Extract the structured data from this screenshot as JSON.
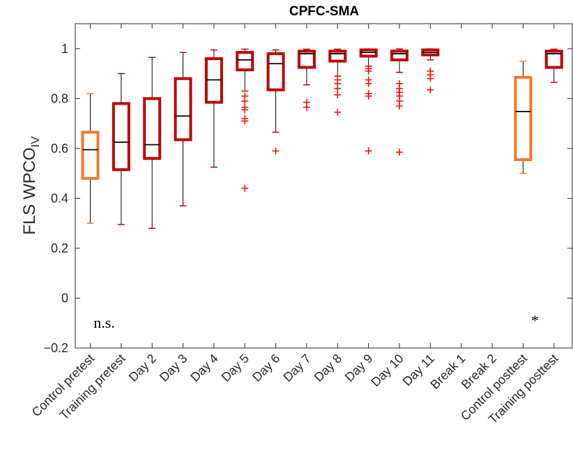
{
  "chart_data": {
    "type": "box",
    "title": "CPFC-SMA",
    "ylabel": "FLS WPCO",
    "ylabel_subscript": "IV",
    "xlabel": "",
    "ylim": [
      -0.2,
      1.1
    ],
    "yticks": [
      -0.2,
      0,
      0.2,
      0.4,
      0.6,
      0.8,
      1
    ],
    "ytick_labels": [
      "−0.2",
      "0",
      "0.2",
      "0.4",
      "0.6",
      "0.8",
      "1"
    ],
    "grid": false,
    "colors": {
      "control": "#f4772c",
      "training": "#c00000",
      "outlier": "#ff0000",
      "median": "#000000"
    },
    "categories": [
      "Control pretest",
      "Training pretest",
      "Day 2",
      "Day 3",
      "Day 4",
      "Day 5",
      "Day 6",
      "Day 7",
      "Day 8",
      "Day 9",
      "Day 10",
      "Day 11",
      "Break 1",
      "Break 2",
      "Control posttest",
      "Training posttest"
    ],
    "boxes": [
      {
        "category": "Control pretest",
        "group": "control",
        "whisker_low": 0.3,
        "q1": 0.48,
        "median": 0.595,
        "q3": 0.665,
        "whisker_high": 0.82,
        "outliers": []
      },
      {
        "category": "Training pretest",
        "group": "training",
        "whisker_low": 0.295,
        "q1": 0.515,
        "median": 0.625,
        "q3": 0.78,
        "whisker_high": 0.9,
        "outliers": []
      },
      {
        "category": "Day 2",
        "group": "training",
        "whisker_low": 0.28,
        "q1": 0.56,
        "median": 0.615,
        "q3": 0.8,
        "whisker_high": 0.965,
        "outliers": []
      },
      {
        "category": "Day 3",
        "group": "training",
        "whisker_low": 0.37,
        "q1": 0.635,
        "median": 0.73,
        "q3": 0.88,
        "whisker_high": 0.985,
        "outliers": []
      },
      {
        "category": "Day 4",
        "group": "training",
        "whisker_low": 0.525,
        "q1": 0.785,
        "median": 0.875,
        "q3": 0.96,
        "whisker_high": 0.995,
        "outliers": []
      },
      {
        "category": "Day 5",
        "group": "training",
        "whisker_low": 0.83,
        "q1": 0.915,
        "median": 0.955,
        "q3": 0.985,
        "whisker_high": 0.998,
        "outliers": [
          0.44,
          0.71,
          0.72,
          0.755,
          0.765,
          0.79,
          0.81
        ]
      },
      {
        "category": "Day 6",
        "group": "training",
        "whisker_low": 0.665,
        "q1": 0.835,
        "median": 0.94,
        "q3": 0.98,
        "whisker_high": 0.995,
        "outliers": [
          0.59
        ]
      },
      {
        "category": "Day 7",
        "group": "training",
        "whisker_low": 0.855,
        "q1": 0.925,
        "median": 0.98,
        "q3": 0.99,
        "whisker_high": 0.998,
        "outliers": [
          0.765,
          0.785
        ]
      },
      {
        "category": "Day 8",
        "group": "training",
        "whisker_low": 0.89,
        "q1": 0.95,
        "median": 0.98,
        "q3": 0.99,
        "whisker_high": 0.998,
        "outliers": [
          0.745,
          0.815,
          0.84,
          0.86,
          0.875
        ]
      },
      {
        "category": "Day 9",
        "group": "training",
        "whisker_low": 0.93,
        "q1": 0.97,
        "median": 0.985,
        "q3": 0.995,
        "whisker_high": 0.999,
        "outliers": [
          0.59,
          0.81,
          0.82,
          0.86,
          0.875,
          0.91,
          0.92
        ]
      },
      {
        "category": "Day 10",
        "group": "training",
        "whisker_low": 0.905,
        "q1": 0.955,
        "median": 0.98,
        "q3": 0.99,
        "whisker_high": 0.999,
        "outliers": [
          0.585,
          0.77,
          0.79,
          0.81,
          0.825,
          0.84,
          0.86
        ]
      },
      {
        "category": "Day 11",
        "group": "training",
        "whisker_low": 0.955,
        "q1": 0.975,
        "median": 0.985,
        "q3": 0.995,
        "whisker_high": 0.999,
        "outliers": [
          0.835,
          0.88,
          0.895,
          0.91
        ]
      },
      {
        "category": "Control posttest",
        "group": "control",
        "whisker_low": 0.5,
        "q1": 0.555,
        "median": 0.748,
        "q3": 0.885,
        "whisker_high": 0.95,
        "outliers": []
      },
      {
        "category": "Training posttest",
        "group": "training",
        "whisker_low": 0.865,
        "q1": 0.925,
        "median": 0.98,
        "q3": 0.99,
        "whisker_high": 0.998,
        "outliers": []
      }
    ],
    "annotations": [
      {
        "text": "n.s.",
        "near": "Control pretest"
      },
      {
        "text": "*",
        "near": "Control posttest"
      }
    ]
  }
}
